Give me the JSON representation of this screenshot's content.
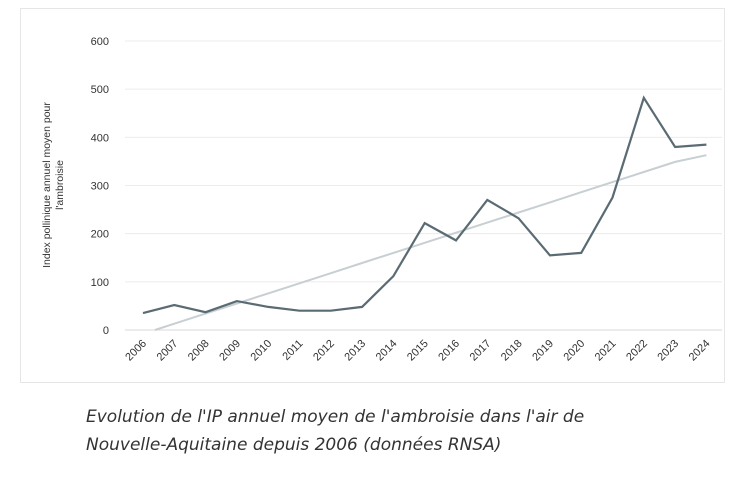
{
  "chart_data": {
    "type": "line",
    "title": "",
    "xlabel": "",
    "ylabel": "Index pollinique annuel moyen pour l'ambroisie",
    "ylim": [
      0,
      600
    ],
    "yticks": [
      0,
      100,
      200,
      300,
      400,
      500,
      600
    ],
    "x": [
      "2006",
      "2007",
      "2008",
      "2009",
      "2010",
      "2011",
      "2012",
      "2013",
      "2014",
      "2015",
      "2016",
      "2017",
      "2018",
      "2019",
      "2020",
      "2021",
      "2022",
      "2023",
      "2024"
    ],
    "series": [
      {
        "values": [
          35,
          52,
          37,
          60,
          48,
          40,
          40,
          48,
          112,
          222,
          186,
          270,
          232,
          155,
          160,
          275,
          482,
          380,
          385
        ],
        "color": "#5b6b73"
      }
    ],
    "trendline": {
      "values": [
        -8,
        13,
        34,
        55,
        76,
        97,
        118,
        139,
        160,
        181,
        202,
        223,
        244,
        265,
        286,
        307,
        328,
        349,
        363
      ],
      "color": "#c8cfd3"
    },
    "grid": true,
    "legend": "none"
  },
  "caption": {
    "line1": "Evolution de l'IP annuel moyen de l'ambroisie dans l'air de",
    "line2": "Nouvelle-Aquitaine depuis 2006 (données RNSA)"
  }
}
